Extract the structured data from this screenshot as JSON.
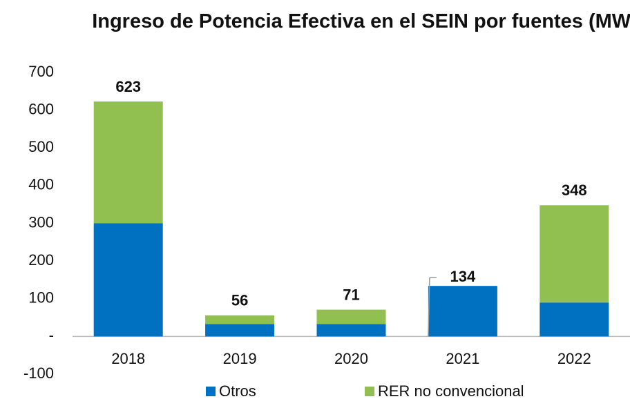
{
  "chart_data": {
    "type": "stacked_bar",
    "title": "Ingreso de Potencia Efectiva en el SEIN por fuentes (MW)",
    "categories": [
      "2018",
      "2019",
      "2020",
      "2021",
      "2022"
    ],
    "series": [
      {
        "name": "Otros",
        "color": "#0070c0",
        "values": [
          300,
          33,
          33,
          134,
          90
        ]
      },
      {
        "name": "RER no convencional",
        "color": "#92c050",
        "values": [
          323,
          23,
          38,
          0,
          258
        ]
      }
    ],
    "totals": [
      623,
      56,
      71,
      134,
      348
    ],
    "ylim": [
      -100,
      700
    ],
    "yticks": [
      -100,
      {
        "value": 0,
        "label": "-"
      },
      100,
      200,
      300,
      400,
      500,
      600,
      700
    ],
    "legend": "bottom"
  }
}
